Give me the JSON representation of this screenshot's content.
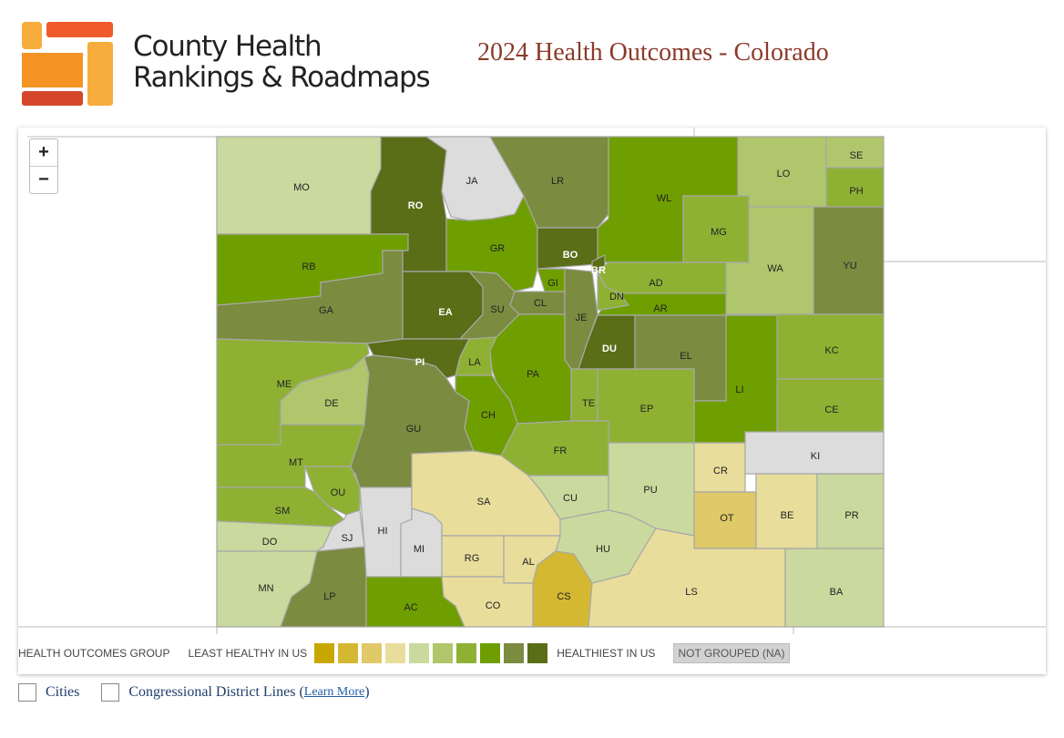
{
  "header": {
    "brand_line1": "County Health",
    "brand_line2": "Rankings & Roadmaps",
    "title": "2024 Health Outcomes - Colorado"
  },
  "zoom": {
    "in": "+",
    "out": "−"
  },
  "colors": {
    "1": "#c8a800",
    "2": "#d4b832",
    "3": "#dfc968",
    "4": "#e9dd9c",
    "5": "#cad99d",
    "6": "#b0c66c",
    "7": "#8fb133",
    "8": "#6f9e00",
    "9": "#7b8b40",
    "10": "#5a6d17",
    "0": "#dcdcdc"
  },
  "legend": {
    "title": "HEALTH OUTCOMES GROUP",
    "least": "LEAST HEALTHY IN US",
    "healthiest": "HEALTHIEST IN US",
    "na": "NOT GROUPED (NA)"
  },
  "options": {
    "cities": "Cities",
    "districts": "Congressional District Lines",
    "paren_open": "(",
    "learn_more": "Learn More",
    "paren_close": ")"
  },
  "counties": [
    {
      "code": "MO",
      "group": 5
    },
    {
      "code": "RO",
      "group": 10
    },
    {
      "code": "JA",
      "group": 0
    },
    {
      "code": "LR",
      "group": 9
    },
    {
      "code": "WL",
      "group": 8
    },
    {
      "code": "LO",
      "group": 6
    },
    {
      "code": "SE",
      "group": 6
    },
    {
      "code": "PH",
      "group": 7
    },
    {
      "code": "MG",
      "group": 7
    },
    {
      "code": "YU",
      "group": 9
    },
    {
      "code": "WA",
      "group": 6
    },
    {
      "code": "RB",
      "group": 8
    },
    {
      "code": "GA",
      "group": 9
    },
    {
      "code": "GR",
      "group": 8
    },
    {
      "code": "BO",
      "group": 10
    },
    {
      "code": "BR",
      "group": 10
    },
    {
      "code": "GI",
      "group": 8
    },
    {
      "code": "AD",
      "group": 7
    },
    {
      "code": "DN",
      "group": 7
    },
    {
      "code": "AR",
      "group": 8
    },
    {
      "code": "EA",
      "group": 10
    },
    {
      "code": "SU",
      "group": 9
    },
    {
      "code": "CL",
      "group": 9
    },
    {
      "code": "JE",
      "group": 9
    },
    {
      "code": "DU",
      "group": 10
    },
    {
      "code": "EL",
      "group": 9
    },
    {
      "code": "KC",
      "group": 7
    },
    {
      "code": "CE",
      "group": 7
    },
    {
      "code": "LI",
      "group": 8
    },
    {
      "code": "ME",
      "group": 7
    },
    {
      "code": "DE",
      "group": 6
    },
    {
      "code": "PI",
      "group": 10
    },
    {
      "code": "LA",
      "group": 7
    },
    {
      "code": "PA",
      "group": 8
    },
    {
      "code": "TE",
      "group": 7
    },
    {
      "code": "EP",
      "group": 7
    },
    {
      "code": "GU",
      "group": 9
    },
    {
      "code": "CH",
      "group": 8
    },
    {
      "code": "FR",
      "group": 7
    },
    {
      "code": "MT",
      "group": 7
    },
    {
      "code": "OU",
      "group": 7
    },
    {
      "code": "SM",
      "group": 7
    },
    {
      "code": "DO",
      "group": 5
    },
    {
      "code": "SJ",
      "group": 0
    },
    {
      "code": "HI",
      "group": 0
    },
    {
      "code": "MI",
      "group": 0
    },
    {
      "code": "SA",
      "group": 4
    },
    {
      "code": "CU",
      "group": 5
    },
    {
      "code": "PU",
      "group": 5
    },
    {
      "code": "CR",
      "group": 4
    },
    {
      "code": "KI",
      "group": 0
    },
    {
      "code": "OT",
      "group": 3
    },
    {
      "code": "BE",
      "group": 4
    },
    {
      "code": "PR",
      "group": 5
    },
    {
      "code": "HU",
      "group": 5
    },
    {
      "code": "RG",
      "group": 4
    },
    {
      "code": "AL",
      "group": 4
    },
    {
      "code": "CS",
      "group": 2
    },
    {
      "code": "LS",
      "group": 4
    },
    {
      "code": "BA",
      "group": 5
    },
    {
      "code": "MN",
      "group": 5
    },
    {
      "code": "LP",
      "group": 9
    },
    {
      "code": "AC",
      "group": 8
    },
    {
      "code": "CO",
      "group": 4
    }
  ]
}
